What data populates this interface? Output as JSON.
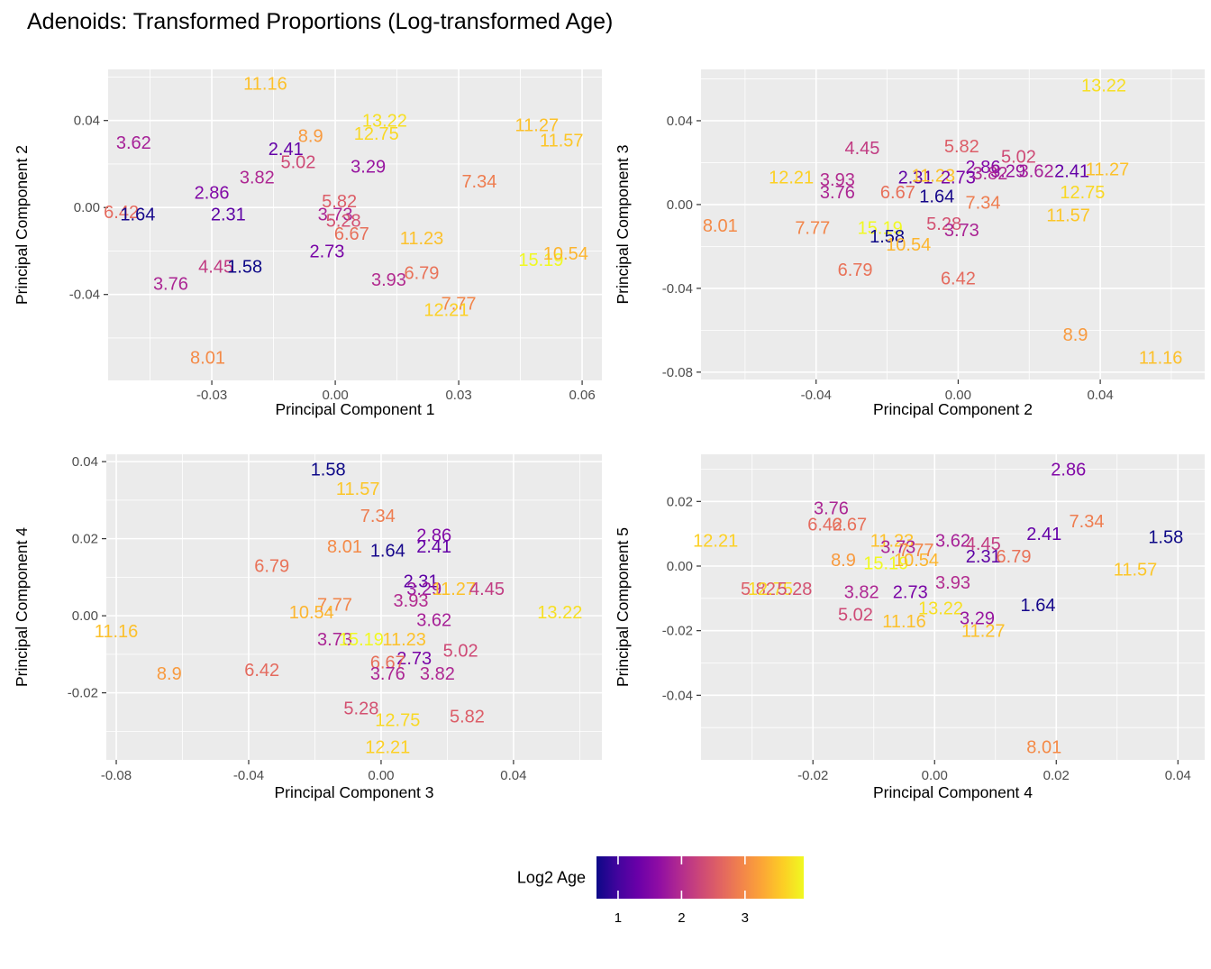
{
  "title": "Adenoids: Transformed Proportions (Log-transformed Age)",
  "chart_data": {
    "type": "scatter",
    "label_style": "text-labels-colored-by-value",
    "legend": {
      "label": "Log2 Age",
      "ticks": [
        1,
        2,
        3
      ],
      "domain": [
        0.66,
        3.925
      ],
      "position": "bottom",
      "colormap_stops": [
        "#0d0887",
        "#41049d",
        "#6a00a8",
        "#8f0da4",
        "#b12a90",
        "#cc4778",
        "#e16462",
        "#f2844b",
        "#fca636",
        "#fcce25",
        "#f0f921"
      ]
    },
    "panel_bg": "#ebebeb",
    "grid_color": "#ffffff",
    "panels": [
      {
        "id": "pc1-vs-pc2",
        "xlabel": "Principal Component 1",
        "ylabel": "Principal Component 2",
        "xlim": [
          -0.0552,
          0.0648
        ],
        "ylim": [
          -0.0795,
          0.0635
        ],
        "xticks": [
          -0.03,
          0,
          0.03,
          0.06
        ],
        "yticks": [
          -0.04,
          0,
          0.04
        ],
        "xminor": [
          -0.045,
          -0.015,
          0.015,
          0.045
        ],
        "yminor": [
          -0.06,
          -0.02,
          0.02,
          0.06
        ],
        "points": [
          {
            "label": "11.16",
            "x": -0.017,
            "y": 0.057
          },
          {
            "label": "13.22",
            "x": 0.012,
            "y": 0.04
          },
          {
            "label": "12.75",
            "x": 0.01,
            "y": 0.034
          },
          {
            "label": "8.9",
            "x": -0.006,
            "y": 0.033
          },
          {
            "label": "11.27",
            "x": 0.049,
            "y": 0.038
          },
          {
            "label": "11.57",
            "x": 0.055,
            "y": 0.031
          },
          {
            "label": "3.62",
            "x": -0.049,
            "y": 0.03
          },
          {
            "label": "2.41",
            "x": -0.012,
            "y": 0.027
          },
          {
            "label": "5.02",
            "x": -0.009,
            "y": 0.021
          },
          {
            "label": "3.29",
            "x": 0.008,
            "y": 0.019
          },
          {
            "label": "3.82",
            "x": -0.019,
            "y": 0.014
          },
          {
            "label": "7.34",
            "x": 0.035,
            "y": 0.012
          },
          {
            "label": "2.86",
            "x": -0.03,
            "y": 0.007
          },
          {
            "label": "5.82",
            "x": 0.001,
            "y": 0.003
          },
          {
            "label": "6.42",
            "x": -0.052,
            "y": -0.002
          },
          {
            "label": "1.64",
            "x": -0.048,
            "y": -0.003
          },
          {
            "label": "2.31",
            "x": -0.026,
            "y": -0.003
          },
          {
            "label": "3.73",
            "x": 0.0,
            "y": -0.003
          },
          {
            "label": "5.28",
            "x": 0.002,
            "y": -0.006
          },
          {
            "label": "6.67",
            "x": 0.004,
            "y": -0.012
          },
          {
            "label": "11.23",
            "x": 0.021,
            "y": -0.014
          },
          {
            "label": "2.73",
            "x": -0.002,
            "y": -0.02
          },
          {
            "label": "15.19",
            "x": 0.05,
            "y": -0.024
          },
          {
            "label": "10.54",
            "x": 0.056,
            "y": -0.021
          },
          {
            "label": "4.45",
            "x": -0.029,
            "y": -0.027
          },
          {
            "label": "1.58",
            "x": -0.022,
            "y": -0.027
          },
          {
            "label": "6.79",
            "x": 0.021,
            "y": -0.03
          },
          {
            "label": "3.93",
            "x": 0.013,
            "y": -0.033
          },
          {
            "label": "3.76",
            "x": -0.04,
            "y": -0.035
          },
          {
            "label": "7.77",
            "x": 0.03,
            "y": -0.044
          },
          {
            "label": "12.21",
            "x": 0.027,
            "y": -0.047
          },
          {
            "label": "8.01",
            "x": -0.031,
            "y": -0.069
          }
        ]
      },
      {
        "id": "pc2-vs-pc3",
        "xlabel": "Principal Component 2",
        "ylabel": "Principal Component 3",
        "xlim": [
          -0.0724,
          0.0694
        ],
        "ylim": [
          -0.0835,
          0.0645
        ],
        "xticks": [
          -0.04,
          0,
          0.04
        ],
        "yticks": [
          -0.08,
          -0.04,
          0,
          0.04
        ],
        "xminor": [
          -0.06,
          -0.02,
          0.02,
          0.06
        ],
        "yminor": [
          -0.06,
          -0.02,
          0.02,
          0.06
        ],
        "points": [
          {
            "label": "13.22",
            "x": 0.041,
            "y": 0.057
          },
          {
            "label": "4.45",
            "x": -0.027,
            "y": 0.027
          },
          {
            "label": "5.82",
            "x": 0.001,
            "y": 0.028
          },
          {
            "label": "5.02",
            "x": 0.017,
            "y": 0.023
          },
          {
            "label": "2.86",
            "x": 0.007,
            "y": 0.018
          },
          {
            "label": "3.62",
            "x": 0.022,
            "y": 0.016
          },
          {
            "label": "2.41",
            "x": 0.032,
            "y": 0.016
          },
          {
            "label": "11.27",
            "x": 0.042,
            "y": 0.017
          },
          {
            "label": "12.21",
            "x": -0.047,
            "y": 0.013
          },
          {
            "label": "3.93",
            "x": -0.034,
            "y": 0.012
          },
          {
            "label": "2.31",
            "x": -0.012,
            "y": 0.013
          },
          {
            "label": "11.23",
            "x": -0.007,
            "y": 0.014
          },
          {
            "label": "2.73",
            "x": 0.0,
            "y": 0.013
          },
          {
            "label": "3.82",
            "x": 0.009,
            "y": 0.015
          },
          {
            "label": "3.29",
            "x": 0.014,
            "y": 0.016
          },
          {
            "label": "3.76",
            "x": -0.034,
            "y": 0.006
          },
          {
            "label": "6.67",
            "x": -0.017,
            "y": 0.006
          },
          {
            "label": "1.64",
            "x": -0.006,
            "y": 0.004
          },
          {
            "label": "7.34",
            "x": 0.007,
            "y": 0.001
          },
          {
            "label": "12.75",
            "x": 0.035,
            "y": 0.006
          },
          {
            "label": "11.57",
            "x": 0.031,
            "y": -0.005
          },
          {
            "label": "5.28",
            "x": -0.004,
            "y": -0.009
          },
          {
            "label": "3.73",
            "x": 0.001,
            "y": -0.012
          },
          {
            "label": "8.01",
            "x": -0.067,
            "y": -0.01
          },
          {
            "label": "7.77",
            "x": -0.041,
            "y": -0.011
          },
          {
            "label": "15.19",
            "x": -0.022,
            "y": -0.011
          },
          {
            "label": "1.58",
            "x": -0.02,
            "y": -0.015
          },
          {
            "label": "10.54",
            "x": -0.014,
            "y": -0.019
          },
          {
            "label": "6.79",
            "x": -0.029,
            "y": -0.031
          },
          {
            "label": "6.42",
            "x": 0.0,
            "y": -0.035
          },
          {
            "label": "8.9",
            "x": 0.033,
            "y": -0.062
          },
          {
            "label": "11.16",
            "x": 0.057,
            "y": -0.073
          }
        ]
      },
      {
        "id": "pc3-vs-pc4",
        "xlabel": "Principal Component 3",
        "ylabel": "Principal Component 4",
        "xlim": [
          -0.083,
          0.0667
        ],
        "ylim": [
          -0.0374,
          0.0419
        ],
        "xticks": [
          -0.08,
          -0.04,
          0,
          0.04
        ],
        "yticks": [
          -0.02,
          0,
          0.02,
          0.04
        ],
        "xminor": [
          -0.06,
          -0.02,
          0.02,
          0.06
        ],
        "yminor": [
          -0.03,
          -0.01,
          0.01,
          0.03
        ],
        "points": [
          {
            "label": "1.58",
            "x": -0.016,
            "y": 0.038
          },
          {
            "label": "11.57",
            "x": -0.007,
            "y": 0.033
          },
          {
            "label": "7.34",
            "x": -0.001,
            "y": 0.026
          },
          {
            "label": "2.86",
            "x": 0.016,
            "y": 0.021
          },
          {
            "label": "8.01",
            "x": -0.011,
            "y": 0.018
          },
          {
            "label": "1.64",
            "x": 0.002,
            "y": 0.017
          },
          {
            "label": "2.41",
            "x": 0.016,
            "y": 0.018
          },
          {
            "label": "6.79",
            "x": -0.033,
            "y": 0.013
          },
          {
            "label": "2.31",
            "x": 0.012,
            "y": 0.009
          },
          {
            "label": "3.29",
            "x": 0.013,
            "y": 0.007
          },
          {
            "label": "11.27",
            "x": 0.022,
            "y": 0.007
          },
          {
            "label": "4.45",
            "x": 0.032,
            "y": 0.007
          },
          {
            "label": "3.93",
            "x": 0.009,
            "y": 0.004
          },
          {
            "label": "7.77",
            "x": -0.014,
            "y": 0.003
          },
          {
            "label": "10.54",
            "x": -0.021,
            "y": 0.001
          },
          {
            "label": "13.22",
            "x": 0.054,
            "y": 0.001
          },
          {
            "label": "3.62",
            "x": 0.016,
            "y": -0.001
          },
          {
            "label": "11.16",
            "x": -0.08,
            "y": -0.004
          },
          {
            "label": "3.73",
            "x": -0.014,
            "y": -0.006
          },
          {
            "label": "15.19",
            "x": -0.006,
            "y": -0.006
          },
          {
            "label": "11.23",
            "x": 0.007,
            "y": -0.006
          },
          {
            "label": "2.73",
            "x": 0.01,
            "y": -0.011
          },
          {
            "label": "5.02",
            "x": 0.024,
            "y": -0.009
          },
          {
            "label": "6.67",
            "x": 0.002,
            "y": -0.012
          },
          {
            "label": "3.76",
            "x": 0.002,
            "y": -0.015
          },
          {
            "label": "3.82",
            "x": 0.017,
            "y": -0.015
          },
          {
            "label": "8.9",
            "x": -0.064,
            "y": -0.015
          },
          {
            "label": "6.42",
            "x": -0.036,
            "y": -0.014
          },
          {
            "label": "5.28",
            "x": -0.006,
            "y": -0.024
          },
          {
            "label": "12.75",
            "x": 0.005,
            "y": -0.027
          },
          {
            "label": "5.82",
            "x": 0.026,
            "y": -0.026
          },
          {
            "label": "12.21",
            "x": 0.002,
            "y": -0.034
          }
        ]
      },
      {
        "id": "pc4-vs-pc5",
        "xlabel": "Principal Component 4",
        "ylabel": "Principal Component 5",
        "xlim": [
          -0.0384,
          0.0444
        ],
        "ylim": [
          -0.06,
          0.0346
        ],
        "xticks": [
          -0.02,
          0,
          0.02,
          0.04
        ],
        "yticks": [
          -0.04,
          -0.02,
          0,
          0.02
        ],
        "xminor": [
          -0.03,
          -0.01,
          0.01,
          0.03
        ],
        "yminor": [
          -0.05,
          -0.03,
          -0.01,
          0.01,
          0.03
        ],
        "points": [
          {
            "label": "2.86",
            "x": 0.022,
            "y": 0.03
          },
          {
            "label": "3.76",
            "x": -0.017,
            "y": 0.018
          },
          {
            "label": "6.42",
            "x": -0.018,
            "y": 0.013
          },
          {
            "label": "6.67",
            "x": -0.014,
            "y": 0.013
          },
          {
            "label": "7.34",
            "x": 0.025,
            "y": 0.014
          },
          {
            "label": "2.41",
            "x": 0.018,
            "y": 0.01
          },
          {
            "label": "1.58",
            "x": 0.038,
            "y": 0.009
          },
          {
            "label": "12.21",
            "x": -0.036,
            "y": 0.008
          },
          {
            "label": "11.23",
            "x": -0.007,
            "y": 0.008
          },
          {
            "label": "3.73",
            "x": -0.006,
            "y": 0.006
          },
          {
            "label": "7.77",
            "x": -0.003,
            "y": 0.005
          },
          {
            "label": "3.62",
            "x": 0.003,
            "y": 0.008
          },
          {
            "label": "4.45",
            "x": 0.008,
            "y": 0.007
          },
          {
            "label": "8.9",
            "x": -0.015,
            "y": 0.002
          },
          {
            "label": "15.19",
            "x": -0.008,
            "y": 0.001
          },
          {
            "label": "10.54",
            "x": -0.003,
            "y": 0.002
          },
          {
            "label": "2.31",
            "x": 0.008,
            "y": 0.003
          },
          {
            "label": "6.79",
            "x": 0.013,
            "y": 0.003
          },
          {
            "label": "11.57",
            "x": 0.033,
            "y": -0.001
          },
          {
            "label": "3.93",
            "x": 0.003,
            "y": -0.005
          },
          {
            "label": "1.64",
            "x": 0.017,
            "y": -0.012
          },
          {
            "label": "5.82",
            "x": -0.029,
            "y": -0.007
          },
          {
            "label": "12.75",
            "x": -0.027,
            "y": -0.007
          },
          {
            "label": "5.28",
            "x": -0.023,
            "y": -0.007
          },
          {
            "label": "3.82",
            "x": -0.012,
            "y": -0.008
          },
          {
            "label": "2.73",
            "x": -0.004,
            "y": -0.008
          },
          {
            "label": "5.02",
            "x": -0.013,
            "y": -0.015
          },
          {
            "label": "11.16",
            "x": -0.005,
            "y": -0.017
          },
          {
            "label": "13.22",
            "x": 0.001,
            "y": -0.013
          },
          {
            "label": "3.29",
            "x": 0.007,
            "y": -0.016
          },
          {
            "label": "11.27",
            "x": 0.008,
            "y": -0.02
          },
          {
            "label": "8.01",
            "x": 0.018,
            "y": -0.056
          }
        ]
      }
    ]
  }
}
